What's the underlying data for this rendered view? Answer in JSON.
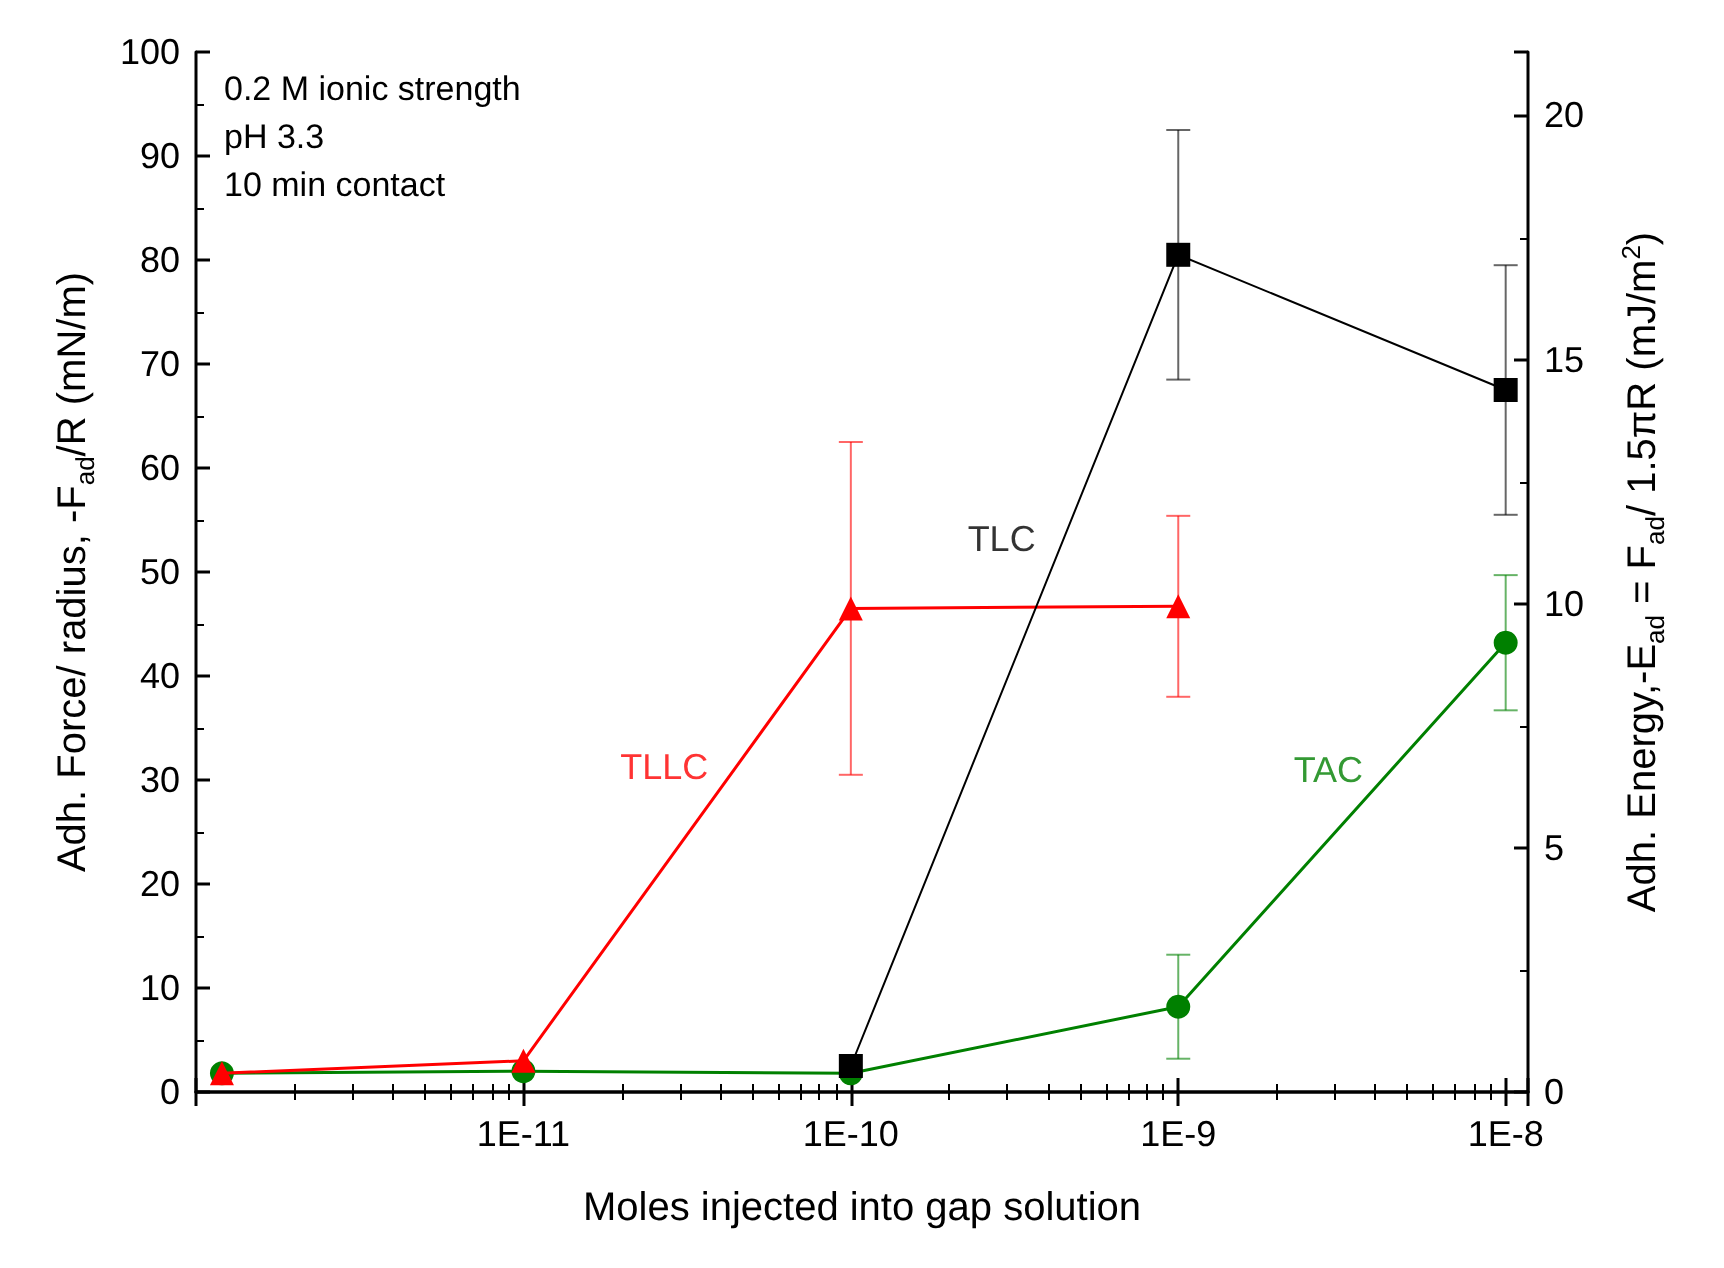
{
  "chart_data": {
    "type": "line",
    "xlabel": "Moles injected into gap solution",
    "ylabel": "Adh. Force/ radius, -F$_{ad}$/R (mN/m)",
    "y2label": "Adh. Energy,-E$_{ad}$ = F$_{ad}$/ 1.5πR (mJ/m$^{2}$)",
    "log": "x",
    "xlim": [
      1e-12,
      1.17e-08
    ],
    "xticks": [
      {
        "value": 1e-11,
        "label": "1E-11"
      },
      {
        "value": 1e-10,
        "label": "1E-10"
      },
      {
        "value": 1e-09,
        "label": "1E-9"
      },
      {
        "value": 1e-08,
        "label": "1E-8"
      }
    ],
    "ylim": [
      0,
      100
    ],
    "yticks": [
      0,
      10,
      20,
      30,
      40,
      50,
      60,
      70,
      80,
      90,
      100
    ],
    "y2lim": [
      0,
      21.3
    ],
    "y2ticks": [
      0,
      5,
      10,
      15,
      20
    ],
    "grid": false,
    "annotations": [
      "0.2 M ionic strength",
      "pH 3.3",
      "10 min contact"
    ],
    "series": [
      {
        "name": "TLC",
        "color": "#000000",
        "marker": "square",
        "x": [
          1e-10,
          1e-09,
          1e-08
        ],
        "values": [
          2.5,
          80.5,
          67.5
        ],
        "errors": [
          null,
          12,
          12
        ]
      },
      {
        "name": "TLLC",
        "color": "#ff0000",
        "marker": "triangle",
        "x": [
          1.2e-12,
          1e-11,
          1e-10,
          1e-09
        ],
        "values": [
          1.8,
          3,
          46.5,
          46.7
        ],
        "errors": [
          null,
          null,
          16,
          8.7
        ]
      },
      {
        "name": "TAC",
        "color": "#008000",
        "marker": "circle",
        "x": [
          1.2e-12,
          1e-11,
          1e-10,
          1e-09,
          1e-08
        ],
        "values": [
          1.8,
          2,
          1.8,
          8.2,
          43.2
        ],
        "errors": [
          null,
          null,
          null,
          5,
          6.5
        ]
      }
    ]
  }
}
